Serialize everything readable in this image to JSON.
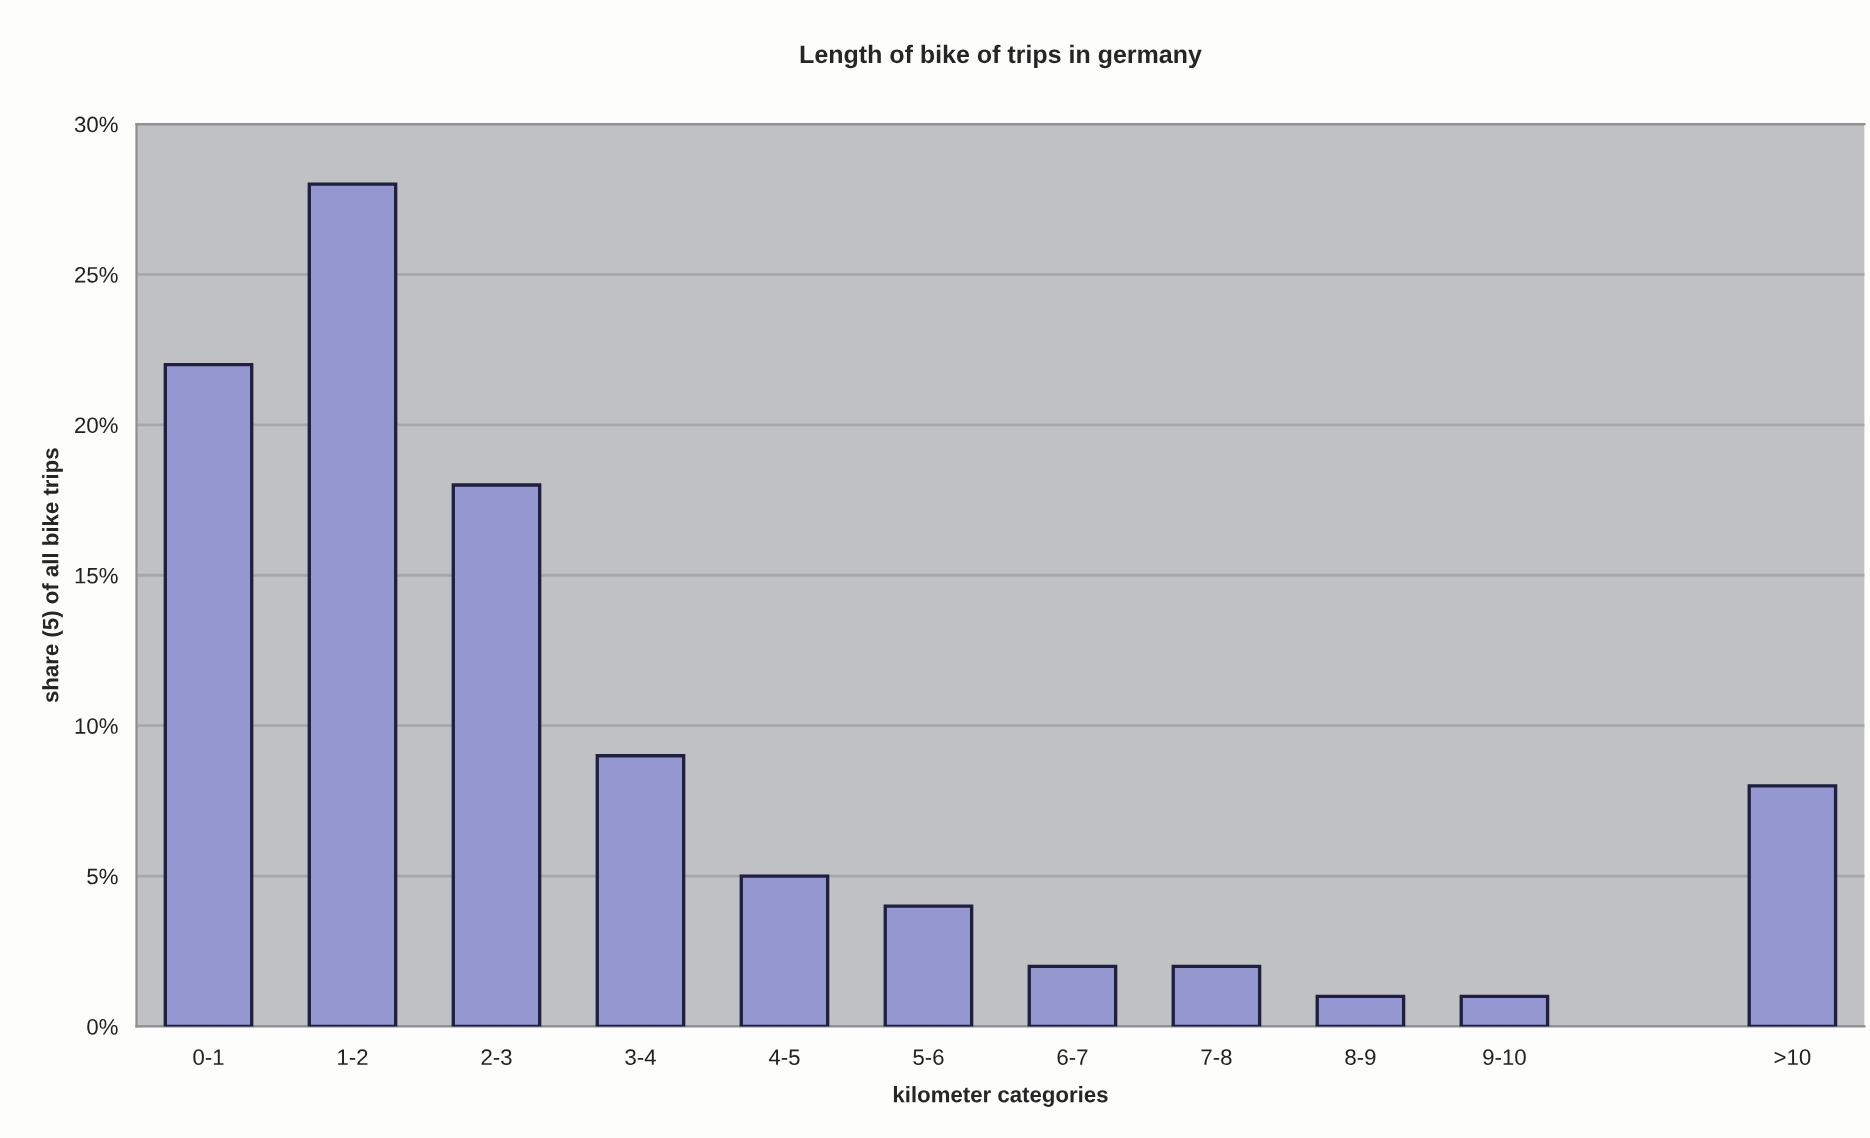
{
  "chart_data": {
    "type": "bar",
    "title": "Length of bike of trips in germany",
    "xlabel": "kilometer categories",
    "ylabel": "share (5) of all bike trips",
    "categories": [
      "0-1",
      "1-2",
      "2-3",
      "3-4",
      "4-5",
      "5-6",
      "6-7",
      "7-8",
      "8-9",
      "9-10",
      null,
      ">10"
    ],
    "values": [
      22,
      28,
      18,
      9,
      5,
      4,
      2,
      2,
      1,
      1,
      null,
      8
    ],
    "color": "#9598d0",
    "ylim": [
      0,
      30
    ],
    "yticks": [
      {
        "value": 0,
        "label": "0%"
      },
      {
        "value": 5,
        "label": "5%"
      },
      {
        "value": 10,
        "label": "10%"
      },
      {
        "value": 15,
        "label": "15%"
      },
      {
        "value": 20,
        "label": "20%"
      },
      {
        "value": 25,
        "label": "25%"
      },
      {
        "value": 30,
        "label": "30%"
      }
    ],
    "grid": "y"
  }
}
